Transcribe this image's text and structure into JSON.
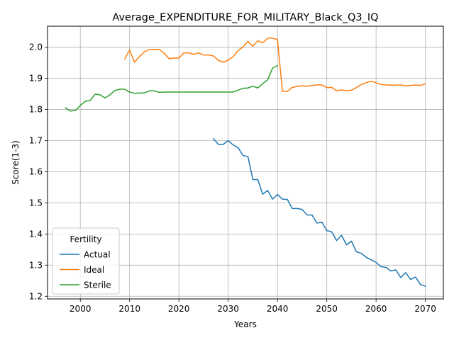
{
  "chart_data": {
    "type": "line",
    "title": "Average_EXPENDITURE_FOR_MILITARY_Black_Q3_IQ",
    "xlabel": "Years",
    "ylabel": "Score(1-3)",
    "xlim": [
      1993.35,
      2073.65
    ],
    "ylim": [
      1.1915,
      2.0675
    ],
    "xticks": [
      2000,
      2010,
      2020,
      2030,
      2040,
      2050,
      2060,
      2070
    ],
    "yticks": [
      1.2,
      1.3,
      1.4,
      1.5,
      1.6,
      1.7,
      1.8,
      1.9,
      2.0
    ],
    "grid": true,
    "legend": {
      "title": "Fertility",
      "placement": "lower-left"
    },
    "series": [
      {
        "name": "Actual",
        "color": "#1f77b4",
        "x": [
          2027,
          2028,
          2029,
          2030,
          2031,
          2032,
          2033,
          2034,
          2035,
          2036,
          2037,
          2038,
          2039,
          2040,
          2041,
          2042,
          2043,
          2044,
          2045,
          2046,
          2047,
          2048,
          2049,
          2050,
          2051,
          2052,
          2053,
          2054,
          2055,
          2056,
          2057,
          2058,
          2059,
          2060,
          2061,
          2062,
          2063,
          2064,
          2065,
          2066,
          2067,
          2068,
          2069,
          2070
        ],
        "y": [
          1.706,
          1.688,
          1.688,
          1.7,
          1.686,
          1.678,
          1.652,
          1.649,
          1.575,
          1.575,
          1.528,
          1.54,
          1.512,
          1.527,
          1.512,
          1.511,
          1.482,
          1.482,
          1.479,
          1.461,
          1.461,
          1.435,
          1.438,
          1.411,
          1.407,
          1.379,
          1.396,
          1.365,
          1.377,
          1.343,
          1.338,
          1.325,
          1.317,
          1.309,
          1.295,
          1.293,
          1.281,
          1.285,
          1.26,
          1.276,
          1.254,
          1.262,
          1.238,
          1.232
        ]
      },
      {
        "name": "Ideal",
        "color": "#ff7f0e",
        "x": [
          2009,
          2010,
          2011,
          2012,
          2013,
          2014,
          2015,
          2016,
          2017,
          2018,
          2019,
          2020,
          2021,
          2022,
          2023,
          2024,
          2025,
          2026,
          2027,
          2028,
          2029,
          2030,
          2031,
          2032,
          2033,
          2034,
          2035,
          2036,
          2037,
          2038,
          2039,
          2040,
          2041,
          2042,
          2043,
          2044,
          2045,
          2046,
          2047,
          2048,
          2049,
          2050,
          2051,
          2052,
          2053,
          2054,
          2055,
          2056,
          2057,
          2058,
          2059,
          2060,
          2061,
          2062,
          2063,
          2064,
          2065,
          2066,
          2067,
          2068,
          2069,
          2070
        ],
        "y": [
          1.962,
          1.991,
          1.952,
          1.97,
          1.985,
          1.993,
          1.993,
          1.993,
          1.981,
          1.963,
          1.965,
          1.965,
          1.982,
          1.982,
          1.977,
          1.982,
          1.975,
          1.975,
          1.972,
          1.958,
          1.952,
          1.958,
          1.97,
          1.989,
          2.001,
          2.019,
          2.003,
          2.021,
          2.014,
          2.029,
          2.029,
          2.025,
          1.858,
          1.858,
          1.871,
          1.874,
          1.876,
          1.875,
          1.877,
          1.879,
          1.879,
          1.87,
          1.871,
          1.86,
          1.863,
          1.86,
          1.862,
          1.87,
          1.88,
          1.886,
          1.891,
          1.886,
          1.88,
          1.879,
          1.878,
          1.878,
          1.879,
          1.876,
          1.877,
          1.879,
          1.877,
          1.883
        ]
      },
      {
        "name": "Sterile",
        "color": "#2ca02c",
        "x": [
          1997,
          1998,
          1999,
          2000,
          2001,
          2002,
          2003,
          2004,
          2005,
          2006,
          2007,
          2008,
          2009,
          2010,
          2011,
          2012,
          2013,
          2014,
          2015,
          2016,
          2017,
          2018,
          2019,
          2020,
          2021,
          2022,
          2023,
          2024,
          2025,
          2026,
          2027,
          2028,
          2029,
          2030,
          2031,
          2032,
          2033,
          2034,
          2035,
          2036,
          2037,
          2038,
          2039,
          2040
        ],
        "y": [
          1.805,
          1.795,
          1.797,
          1.813,
          1.826,
          1.829,
          1.849,
          1.847,
          1.837,
          1.847,
          1.861,
          1.865,
          1.865,
          1.856,
          1.852,
          1.853,
          1.853,
          1.86,
          1.86,
          1.855,
          1.856,
          1.856,
          1.856,
          1.856,
          1.856,
          1.856,
          1.856,
          1.856,
          1.856,
          1.856,
          1.856,
          1.856,
          1.856,
          1.856,
          1.856,
          1.862,
          1.868,
          1.869,
          1.875,
          1.869,
          1.883,
          1.895,
          1.933,
          1.941
        ]
      }
    ]
  }
}
